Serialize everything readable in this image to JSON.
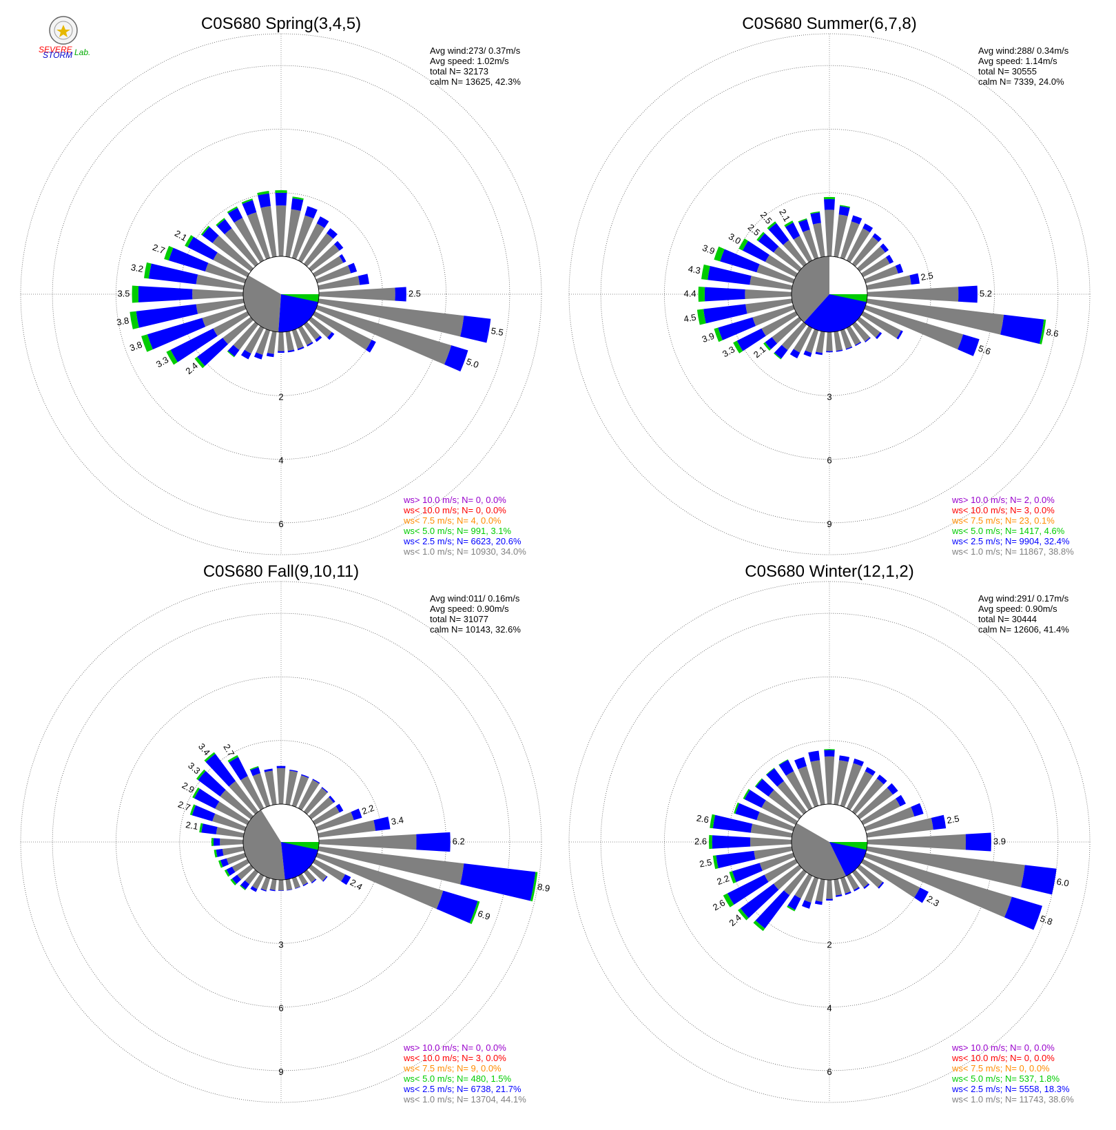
{
  "logo": {
    "text_severe": "SEVERE",
    "text_storm": "STORM",
    "text_lab": "Lab."
  },
  "colors": {
    "gray": "#808080",
    "blue": "#0000ff",
    "green": "#00cc00",
    "orange": "#ff8c00",
    "red": "#ff0000",
    "purple": "#9900cc"
  },
  "chart_data": [
    {
      "type": "windrose",
      "title": "C0S680 Spring(3,4,5)",
      "stats": [
        "Avg wind:273/ 0.37m/s",
        "Avg speed: 1.02m/s",
        "total N=      32173",
        "calm N=  13625,  42.3%"
      ],
      "ring_labels": [
        "2",
        "4",
        "6"
      ],
      "rmax": 7.0,
      "legend": [
        "ws> 10.0 m/s; N=     0,  0.0%",
        "ws< 10.0 m/s; N=     0,  0.0%",
        "ws<  7.5 m/s; N=     4,  0.0%",
        "ws<  5.0 m/s; N=   991,  3.1%",
        "ws<  2.5 m/s; N=  6623, 20.6%",
        "ws<  1.0 m/s; N= 10930, 34.0%"
      ],
      "calm_blue_from": 90,
      "calm_blue_to": 184,
      "calm_green_to": 196,
      "calm_gray_from": 184,
      "calm_gray_to": 300,
      "bars": [
        [
          0,
          1.6,
          0.4,
          0.08,
          ""
        ],
        [
          10,
          1.5,
          0.35,
          0.05,
          ""
        ],
        [
          20,
          1.4,
          0.3,
          0,
          ""
        ],
        [
          30,
          1.3,
          0.25,
          0,
          ""
        ],
        [
          40,
          1.2,
          0.2,
          0,
          ""
        ],
        [
          50,
          1.1,
          0.15,
          0,
          ""
        ],
        [
          60,
          1.0,
          0.1,
          0,
          ""
        ],
        [
          70,
          1.1,
          0.2,
          0,
          ""
        ],
        [
          80,
          1.3,
          0.3,
          0,
          ""
        ],
        [
          90,
          2.4,
          0.35,
          0,
          "2.5"
        ],
        [
          100,
          4.6,
          0.85,
          0,
          "5.5"
        ],
        [
          110,
          4.4,
          0.55,
          0,
          "5.0"
        ],
        [
          120,
          2.0,
          0.15,
          0,
          ""
        ],
        [
          130,
          0.8,
          0.1,
          0,
          ""
        ],
        [
          140,
          0.6,
          0.08,
          0,
          ""
        ],
        [
          150,
          0.6,
          0.05,
          0,
          ""
        ],
        [
          160,
          0.6,
          0.05,
          0,
          ""
        ],
        [
          170,
          0.6,
          0.05,
          0,
          ""
        ],
        [
          180,
          0.6,
          0.05,
          0,
          ""
        ],
        [
          190,
          0.7,
          0.1,
          0,
          ""
        ],
        [
          200,
          0.8,
          0.15,
          0,
          ""
        ],
        [
          210,
          0.9,
          0.2,
          0,
          ""
        ],
        [
          220,
          1.0,
          0.25,
          0.03,
          ""
        ],
        [
          230,
          1.1,
          1.0,
          0.1,
          "2.4"
        ],
        [
          240,
          1.2,
          1.5,
          0.15,
          "3.3"
        ],
        [
          250,
          1.4,
          1.8,
          0.2,
          "3.8"
        ],
        [
          260,
          1.5,
          1.9,
          0.2,
          "3.8"
        ],
        [
          270,
          1.6,
          1.7,
          0.2,
          "3.5"
        ],
        [
          280,
          1.5,
          1.5,
          0.15,
          "3.2"
        ],
        [
          290,
          1.3,
          1.2,
          0.15,
          "2.7"
        ],
        [
          300,
          1.2,
          0.9,
          0.1,
          "2.1"
        ],
        [
          310,
          1.5,
          0.4,
          0.05,
          ""
        ],
        [
          320,
          1.4,
          0.35,
          0.05,
          ""
        ],
        [
          330,
          1.5,
          0.35,
          0.05,
          ""
        ],
        [
          340,
          1.5,
          0.4,
          0.05,
          ""
        ],
        [
          350,
          1.6,
          0.4,
          0.08,
          ""
        ]
      ]
    },
    {
      "type": "windrose",
      "title": "C0S680 Summer(6,7,8)",
      "stats": [
        "Avg wind:288/ 0.34m/s",
        "Avg speed: 1.14m/s",
        "total N=      30555",
        "calm N=   7339,  24.0%"
      ],
      "ring_labels": [
        "3",
        "6",
        "9"
      ],
      "rmax": 10.5,
      "legend": [
        "ws> 10.0 m/s; N=     2,  0.0%",
        "ws< 10.0 m/s; N=     3,  0.0%",
        "ws<  7.5 m/s; N=    23,  0.1%",
        "ws<  5.0 m/s; N=  1417,  4.6%",
        "ws<  2.5 m/s; N=  9904, 32.4%",
        "ws<  1.0 m/s; N= 11867, 38.8%"
      ],
      "calm_blue_from": 90,
      "calm_blue_to": 222,
      "calm_green_to": 238,
      "calm_gray_from": 222,
      "calm_gray_to": 360,
      "bars": [
        [
          0,
          2.2,
          0.5,
          0.1,
          ""
        ],
        [
          10,
          2.0,
          0.4,
          0.05,
          ""
        ],
        [
          20,
          1.8,
          0.3,
          0,
          ""
        ],
        [
          30,
          1.7,
          0.25,
          0,
          ""
        ],
        [
          40,
          1.6,
          0.2,
          0,
          ""
        ],
        [
          50,
          1.5,
          0.2,
          0,
          ""
        ],
        [
          60,
          1.4,
          0.2,
          0,
          ""
        ],
        [
          70,
          1.6,
          0.25,
          0,
          ""
        ],
        [
          80,
          2.1,
          0.4,
          0,
          "2.5"
        ],
        [
          90,
          4.3,
          0.9,
          0,
          "5.2"
        ],
        [
          100,
          6.5,
          1.9,
          0.1,
          "8.6"
        ],
        [
          110,
          4.8,
          0.8,
          0,
          "5.6"
        ],
        [
          120,
          2.0,
          0.1,
          0,
          ""
        ],
        [
          130,
          1.2,
          0.1,
          0,
          ""
        ],
        [
          140,
          1.0,
          0.05,
          0,
          ""
        ],
        [
          150,
          0.9,
          0.05,
          0,
          ""
        ],
        [
          160,
          0.9,
          0.05,
          0,
          ""
        ],
        [
          170,
          0.9,
          0.05,
          0,
          ""
        ],
        [
          180,
          0.9,
          0.05,
          0,
          ""
        ],
        [
          190,
          1.0,
          0.1,
          0,
          ""
        ],
        [
          200,
          1.1,
          0.2,
          0,
          ""
        ],
        [
          210,
          1.3,
          0.3,
          0,
          ""
        ],
        [
          220,
          1.5,
          0.5,
          0.05,
          ""
        ],
        [
          230,
          1.6,
          0.4,
          0.1,
          "2.1"
        ],
        [
          240,
          1.8,
          1.3,
          0.2,
          "3.3"
        ],
        [
          250,
          2.0,
          1.7,
          0.2,
          "3.9"
        ],
        [
          260,
          2.2,
          2.0,
          0.3,
          "4.5"
        ],
        [
          270,
          2.2,
          1.9,
          0.3,
          "4.4"
        ],
        [
          280,
          2.0,
          2.0,
          0.3,
          "4.3"
        ],
        [
          290,
          1.8,
          1.8,
          0.3,
          "3.9"
        ],
        [
          300,
          1.6,
          1.2,
          0.2,
          "3.0"
        ],
        [
          310,
          1.5,
          0.9,
          0.1,
          "2.5"
        ],
        [
          320,
          1.4,
          1.0,
          0.1,
          "2.5"
        ],
        [
          330,
          1.3,
          0.7,
          0.1,
          "2.1"
        ],
        [
          340,
          1.4,
          0.5,
          0.05,
          ""
        ],
        [
          350,
          1.6,
          0.5,
          0.05,
          ""
        ]
      ]
    },
    {
      "type": "windrose",
      "title": "C0S680 Fall(9,10,11)",
      "stats": [
        "Avg wind:011/ 0.16m/s",
        "Avg speed: 0.90m/s",
        "total N=      31077",
        "calm N=  10143,  32.6%"
      ],
      "ring_labels": [
        "3",
        "6",
        "9"
      ],
      "rmax": 10.5,
      "legend": [
        "ws> 10.0 m/s; N=     0,  0.0%",
        "ws< 10.0 m/s; N=     3,  0.0%",
        "ws<  7.5 m/s; N=     9,  0.0%",
        "ws<  5.0 m/s; N=   480,  1.5%",
        "ws<  2.5 m/s; N=  6738, 21.7%",
        "ws<  1.0 m/s; N= 13704, 44.1%"
      ],
      "calm_blue_from": 90,
      "calm_blue_to": 174,
      "calm_green_to": 186,
      "calm_gray_from": 174,
      "calm_gray_to": 328,
      "bars": [
        [
          0,
          1.7,
          0.1,
          0,
          ""
        ],
        [
          10,
          1.6,
          0.05,
          0,
          ""
        ],
        [
          20,
          1.5,
          0.05,
          0,
          ""
        ],
        [
          30,
          1.5,
          0.05,
          0,
          ""
        ],
        [
          40,
          1.4,
          0.05,
          0,
          ""
        ],
        [
          50,
          1.3,
          0.1,
          0,
          ""
        ],
        [
          60,
          1.3,
          0.2,
          0,
          ""
        ],
        [
          70,
          1.8,
          0.4,
          0,
          "2.2"
        ],
        [
          80,
          2.7,
          0.7,
          0,
          "3.4"
        ],
        [
          90,
          4.6,
          1.6,
          0,
          "6.2"
        ],
        [
          100,
          6.9,
          3.4,
          0.1,
          "8.9"
        ],
        [
          110,
          6.2,
          1.7,
          0.1,
          "6.9"
        ],
        [
          120,
          1.6,
          0.3,
          0,
          "2.4"
        ],
        [
          130,
          0.9,
          0.05,
          0,
          ""
        ],
        [
          140,
          0.6,
          0.05,
          0,
          ""
        ],
        [
          150,
          0.5,
          0.05,
          0,
          ""
        ],
        [
          160,
          0.5,
          0.02,
          0,
          ""
        ],
        [
          170,
          0.5,
          0.02,
          0,
          ""
        ],
        [
          180,
          0.5,
          0.02,
          0,
          ""
        ],
        [
          190,
          0.5,
          0.05,
          0,
          ""
        ],
        [
          200,
          0.6,
          0.05,
          0,
          ""
        ],
        [
          210,
          0.7,
          0.15,
          0,
          ""
        ],
        [
          220,
          0.7,
          0.3,
          0.05,
          ""
        ],
        [
          230,
          0.8,
          0.3,
          0.1,
          ""
        ],
        [
          240,
          0.8,
          0.3,
          0.1,
          ""
        ],
        [
          250,
          0.9,
          0.3,
          0.1,
          ""
        ],
        [
          260,
          1.0,
          0.3,
          0.1,
          ""
        ],
        [
          270,
          1.1,
          0.3,
          0.1,
          ""
        ],
        [
          280,
          1.3,
          0.7,
          0.1,
          "2.1"
        ],
        [
          290,
          1.6,
          1.0,
          0.1,
          "2.7"
        ],
        [
          300,
          1.7,
          1.1,
          0.1,
          "2.9"
        ],
        [
          310,
          1.8,
          1.3,
          0.1,
          "3.3"
        ],
        [
          320,
          1.8,
          1.6,
          0.1,
          "3.4"
        ],
        [
          330,
          1.7,
          1.0,
          0.1,
          "2.7"
        ],
        [
          340,
          1.6,
          0.3,
          0.05,
          ""
        ],
        [
          350,
          1.6,
          0.1,
          0,
          ""
        ]
      ]
    },
    {
      "type": "windrose",
      "title": "C0S680 Winter(12,1,2)",
      "stats": [
        "Avg wind:291/ 0.17m/s",
        "Avg speed: 0.90m/s",
        "total N=      30444",
        "calm N=  12606,  41.4%"
      ],
      "ring_labels": [
        "2",
        "4",
        "6"
      ],
      "rmax": 7.0,
      "legend": [
        "ws> 10.0 m/s; N=     0,  0.0%",
        "ws< 10.0 m/s; N=     0,  0.0%",
        "ws<  7.5 m/s; N=     0,  0.0%",
        "ws<  5.0 m/s; N=   537,  1.8%",
        "ws<  2.5 m/s; N=  5558, 18.3%",
        "ws<  1.0 m/s; N= 11743, 38.6%"
      ],
      "calm_blue_from": 90,
      "calm_blue_to": 154,
      "calm_green_to": 166,
      "calm_gray_from": 154,
      "calm_gray_to": 300,
      "bars": [
        [
          0,
          1.5,
          0.2,
          0.03,
          ""
        ],
        [
          10,
          1.4,
          0.15,
          0,
          ""
        ],
        [
          20,
          1.4,
          0.15,
          0,
          ""
        ],
        [
          30,
          1.3,
          0.15,
          0,
          ""
        ],
        [
          40,
          1.3,
          0.15,
          0,
          ""
        ],
        [
          50,
          1.3,
          0.2,
          0,
          ""
        ],
        [
          60,
          1.3,
          0.2,
          0,
          ""
        ],
        [
          70,
          1.6,
          0.3,
          0,
          ""
        ],
        [
          80,
          2.1,
          0.4,
          0,
          "2.5"
        ],
        [
          90,
          3.1,
          0.8,
          0,
          "3.9"
        ],
        [
          100,
          5.0,
          1.0,
          0,
          "6.0"
        ],
        [
          110,
          4.8,
          1.0,
          0,
          "5.8"
        ],
        [
          120,
          2.0,
          0.3,
          0,
          "2.3"
        ],
        [
          130,
          0.9,
          0.05,
          0,
          ""
        ],
        [
          140,
          0.6,
          0.05,
          0,
          ""
        ],
        [
          150,
          0.5,
          0.05,
          0,
          ""
        ],
        [
          160,
          0.5,
          0.05,
          0,
          ""
        ],
        [
          170,
          0.5,
          0.05,
          0,
          ""
        ],
        [
          180,
          0.6,
          0.05,
          0,
          ""
        ],
        [
          190,
          0.7,
          0.1,
          0,
          ""
        ],
        [
          200,
          0.8,
          0.2,
          0,
          ""
        ],
        [
          210,
          0.8,
          0.4,
          0.05,
          ""
        ],
        [
          220,
          0.9,
          1.3,
          0.1,
          ""
        ],
        [
          230,
          1.0,
          1.3,
          0.1,
          "2.4"
        ],
        [
          240,
          1.1,
          1.3,
          0.15,
          "2.6"
        ],
        [
          250,
          1.1,
          0.9,
          0.1,
          "2.2"
        ],
        [
          260,
          1.2,
          1.2,
          0.1,
          "2.5"
        ],
        [
          270,
          1.3,
          1.2,
          0.1,
          "2.6"
        ],
        [
          280,
          1.3,
          1.2,
          0.1,
          "2.6"
        ],
        [
          290,
          1.2,
          0.7,
          0.05,
          ""
        ],
        [
          300,
          1.2,
          0.6,
          0.05,
          ""
        ],
        [
          310,
          1.2,
          0.5,
          0.03,
          ""
        ],
        [
          320,
          1.2,
          0.5,
          0.02,
          ""
        ],
        [
          330,
          1.3,
          0.4,
          0.02,
          ""
        ],
        [
          340,
          1.3,
          0.3,
          0,
          ""
        ],
        [
          350,
          1.4,
          0.3,
          0,
          ""
        ]
      ]
    }
  ]
}
